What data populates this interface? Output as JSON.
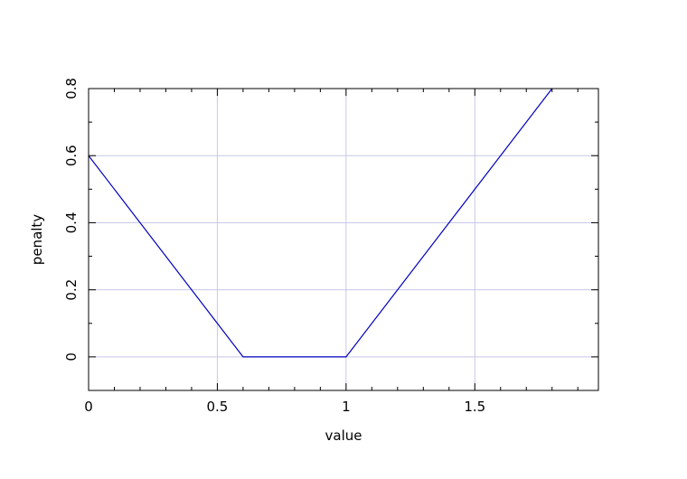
{
  "chart_data": {
    "type": "line",
    "title": "",
    "xlabel": "value",
    "ylabel": "penalty",
    "xlim": [
      0,
      1.98
    ],
    "ylim": [
      -0.1,
      0.8
    ],
    "xticks": [
      0,
      0.5,
      1,
      1.5
    ],
    "xtick_labels": [
      "0",
      "0.5",
      "1",
      "1.5"
    ],
    "xminor_step": 0.1,
    "yticks": [
      0,
      0.2,
      0.4,
      0.6,
      0.8
    ],
    "ytick_labels": [
      "0",
      "0.2",
      "0.4",
      "0.6",
      "0.8"
    ],
    "yminor_step": 0.1,
    "grid": true,
    "grid_color": "#c8c8e8",
    "series": [
      {
        "color": "#0000c0",
        "x": [
          0,
          0.6,
          1.0,
          1.8
        ],
        "y": [
          0.6,
          0.0,
          0.0,
          0.8
        ]
      }
    ]
  }
}
